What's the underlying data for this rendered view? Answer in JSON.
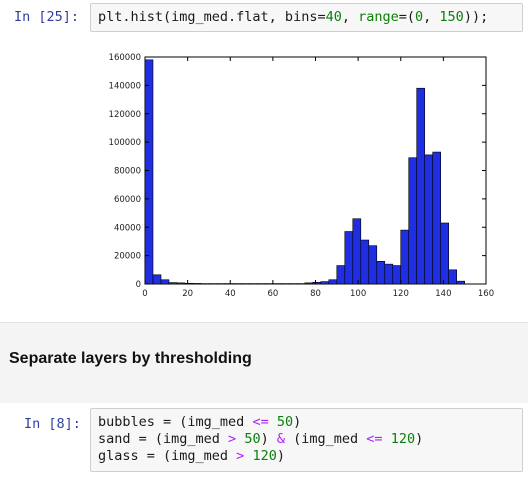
{
  "cells": [
    {
      "prompt": "In [25]:",
      "code": [
        [
          {
            "t": "plt.hist(img_med.flat, bins=",
            "c": ""
          },
          {
            "t": "40",
            "c": "num"
          },
          {
            "t": ", ",
            "c": ""
          },
          {
            "t": "range",
            "c": "kw"
          },
          {
            "t": "=(",
            "c": ""
          },
          {
            "t": "0",
            "c": "num"
          },
          {
            "t": ", ",
            "c": ""
          },
          {
            "t": "150",
            "c": "num"
          },
          {
            "t": "));",
            "c": ""
          }
        ]
      ]
    },
    {
      "prompt": "In [8]:",
      "code": [
        [
          {
            "t": "bubbles = (img_med ",
            "c": ""
          },
          {
            "t": "<=",
            "c": "op"
          },
          {
            "t": " ",
            "c": ""
          },
          {
            "t": "50",
            "c": "num"
          },
          {
            "t": ")",
            "c": ""
          }
        ],
        [
          {
            "t": "sand = (img_med ",
            "c": ""
          },
          {
            "t": ">",
            "c": "op"
          },
          {
            "t": " ",
            "c": ""
          },
          {
            "t": "50",
            "c": "num"
          },
          {
            "t": ") ",
            "c": ""
          },
          {
            "t": "&",
            "c": "op"
          },
          {
            "t": " (img_med ",
            "c": ""
          },
          {
            "t": "<=",
            "c": "op"
          },
          {
            "t": " ",
            "c": ""
          },
          {
            "t": "120",
            "c": "num"
          },
          {
            "t": ")",
            "c": ""
          }
        ],
        [
          {
            "t": "glass = (img_med ",
            "c": ""
          },
          {
            "t": ">",
            "c": "op"
          },
          {
            "t": " ",
            "c": ""
          },
          {
            "t": "120",
            "c": "num"
          },
          {
            "t": ")",
            "c": ""
          }
        ]
      ]
    }
  ],
  "markdown": {
    "heading": "Separate layers by thresholding"
  },
  "chart_data": {
    "type": "bar",
    "bin_edges_start": 0,
    "bin_width": 3.75,
    "values": [
      158000,
      6500,
      3000,
      1000,
      800,
      500,
      400,
      300,
      300,
      300,
      300,
      300,
      300,
      300,
      300,
      300,
      300,
      300,
      300,
      300,
      800,
      1200,
      1700,
      3000,
      13000,
      37000,
      46000,
      31000,
      27000,
      16000,
      14000,
      13000,
      38000,
      89000,
      138000,
      91000,
      93000,
      43000,
      10000,
      2000
    ],
    "xlim": [
      0,
      160
    ],
    "ylim": [
      0,
      160000
    ],
    "xticks": [
      "0",
      "20",
      "40",
      "60",
      "80",
      "100",
      "120",
      "140",
      "160"
    ],
    "yticks": [
      "0",
      "20000",
      "40000",
      "60000",
      "80000",
      "100000",
      "120000",
      "140000",
      "160000"
    ],
    "bar_color": "#1f2ee0",
    "edge_color": "#000000"
  }
}
